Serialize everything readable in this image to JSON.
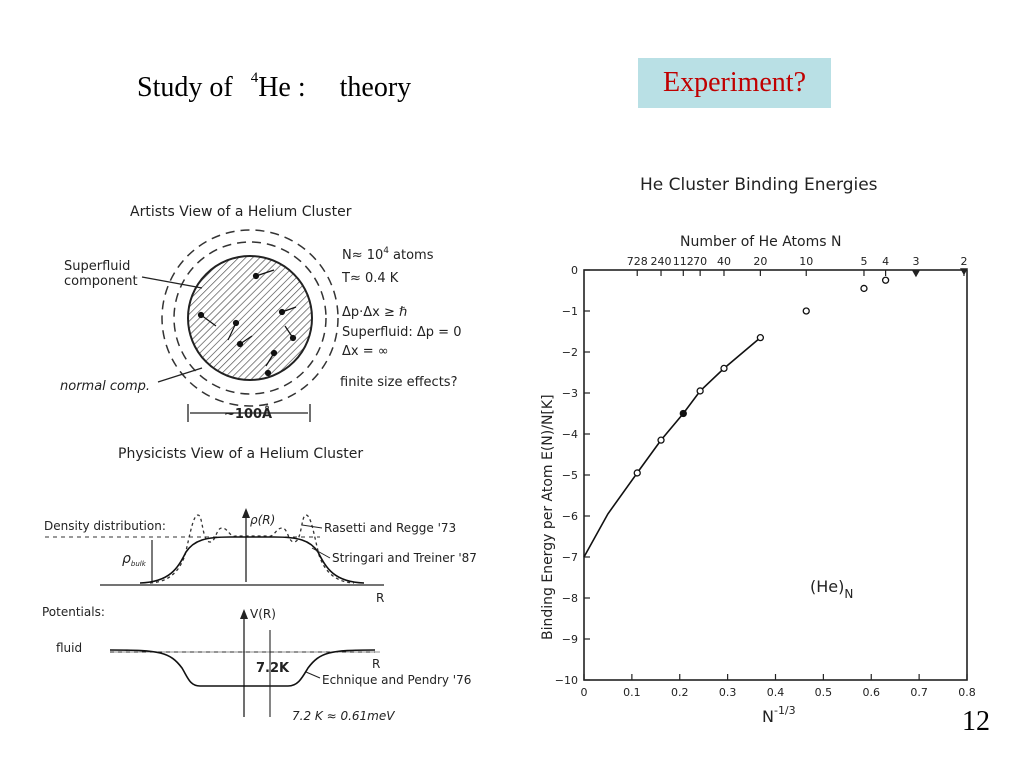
{
  "slide": {
    "title_prefix": "Study of",
    "title_sup": "4",
    "title_element": "He :",
    "title_suffix": "theory",
    "experiment_label": "Experiment?",
    "page_number": "12"
  },
  "left_figure": {
    "artist_title": "Artists View of a Helium Cluster",
    "superfluid_label_1": "Superfluid",
    "superfluid_label_2": "component",
    "normal_label": "normal comp.",
    "size_label": "~100Å",
    "n_prefix": "N≈ 10",
    "n_exp": "4",
    "n_suffix": "atoms",
    "temperature": "T≈ 0.4 K",
    "uncertainty": "Δp·Δx ≥ ℏ",
    "superfluid_dp": "Superfluid: Δp = 0",
    "dx_inf": "Δx = ∞",
    "finite_size": "finite size effects?",
    "physicist_title": "Physicists View of a Helium Cluster",
    "density_label": "Density distribution:",
    "rho_r": "ρ(R)",
    "rho_bulk": "ρ",
    "rho_bulk_sub": "bulk",
    "rasetti": "Rasetti and Regge '73",
    "stringari": "Stringari and Treiner '87",
    "r_axis_1": "R",
    "potentials_label": "Potentials:",
    "v_r": "V(R)",
    "fluid_label": "fluid",
    "depth_label": "7.2K",
    "r_axis_2": "R",
    "echnique": "Echnique and Pendry '76",
    "conversion": "7.2 K ≈ 0.61meV"
  },
  "chart_data": {
    "type": "scatter",
    "title": "He Cluster Binding Energies",
    "xlabel": "N^-1/3",
    "ylabel": "Binding Energy per Atom E(N)/N[K]",
    "top_axis_label": "Number of He Atoms N",
    "annotation": "(He)",
    "annotation_sub": "N",
    "xlabel_base": "N",
    "xlabel_exp": "-1/3",
    "xlim": [
      0,
      0.8
    ],
    "ylim": [
      -10,
      0
    ],
    "x_ticks": [
      "0",
      "0.1",
      "0.2",
      "0.3",
      "0.4",
      "0.5",
      "0.6",
      "0.7",
      "0.8"
    ],
    "y_ticks": [
      "0",
      "−1",
      "−2",
      "−3",
      "−4",
      "−5",
      "−6",
      "−7",
      "−8",
      "−9",
      "−10"
    ],
    "top_ticks": [
      {
        "label": "728",
        "x": 0.1112
      },
      {
        "label": "240",
        "x": 0.1609
      },
      {
        "label": "112",
        "x": 0.2074
      },
      {
        "label": "70",
        "x": 0.2426
      },
      {
        "label": "40",
        "x": 0.2924
      },
      {
        "label": "20",
        "x": 0.3684
      },
      {
        "label": "10",
        "x": 0.4642
      },
      {
        "label": "5",
        "x": 0.5848
      },
      {
        "label": "4",
        "x": 0.63
      },
      {
        "label": "3",
        "x": 0.6934
      },
      {
        "label": "2",
        "x": 0.7937
      }
    ],
    "points": [
      {
        "x": 0.1112,
        "y": -4.95,
        "style": "open"
      },
      {
        "x": 0.1609,
        "y": -4.15,
        "style": "open"
      },
      {
        "x": 0.2074,
        "y": -3.5,
        "style": "filled"
      },
      {
        "x": 0.2426,
        "y": -2.95,
        "style": "open"
      },
      {
        "x": 0.2924,
        "y": -2.4,
        "style": "open"
      },
      {
        "x": 0.3684,
        "y": -1.65,
        "style": "open"
      },
      {
        "x": 0.4642,
        "y": -1.0,
        "style": "open"
      },
      {
        "x": 0.5848,
        "y": -0.45,
        "style": "open"
      },
      {
        "x": 0.63,
        "y": -0.25,
        "style": "open"
      },
      {
        "x": 0.6934,
        "y": -0.08,
        "style": "triangle"
      },
      {
        "x": 0.7937,
        "y": -0.03,
        "style": "triangle"
      }
    ],
    "fit_curve": {
      "x": [
        0.0,
        0.05,
        0.1112,
        0.1609,
        0.2074,
        0.2426,
        0.2924,
        0.3684
      ],
      "y": [
        -7.0,
        -5.95,
        -4.95,
        -4.15,
        -3.5,
        -2.95,
        -2.4,
        -1.65
      ]
    },
    "grid": false
  },
  "colors": {
    "experiment_bg": "#b9e0e5",
    "experiment_text": "#c00000"
  }
}
